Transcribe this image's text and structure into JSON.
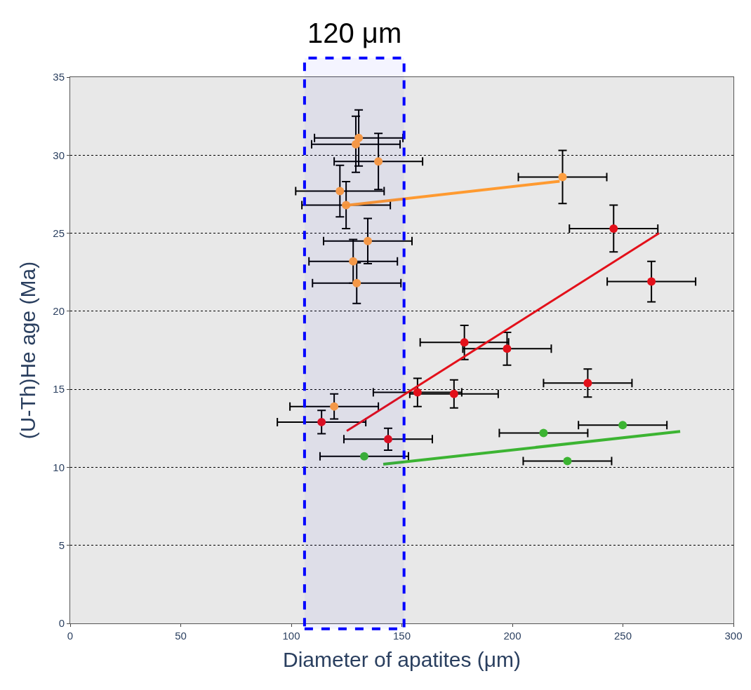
{
  "chart_data": {
    "type": "scatter",
    "xlabel": "Diameter of apatites (μm)",
    "ylabel": "(U-Th)He age (Ma)",
    "xlim": [
      0,
      300
    ],
    "xticks": [
      0,
      50,
      100,
      150,
      200,
      250,
      300
    ],
    "ylim": [
      0,
      35
    ],
    "yticks": [
      0,
      5,
      10,
      15,
      20,
      25,
      30,
      35
    ],
    "grid": "y",
    "marker": "circle",
    "series": [
      {
        "color": "#ff9f40",
        "x": [
          130.5,
          129.2,
          139.4,
          122,
          124.8,
          134.6,
          128,
          129.6,
          222.7,
          119.4
        ],
        "values": [
          31.1,
          30.7,
          29.6,
          27.7,
          26.8,
          24.5,
          23.2,
          21.8,
          28.6,
          13.9
        ],
        "errors": [
          1.8,
          1.8,
          1.8,
          1.65,
          1.5,
          1.45,
          1.4,
          1.3,
          1.7,
          0.8
        ],
        "xerrors": [
          20,
          20,
          20,
          20,
          20,
          20,
          20,
          20,
          20,
          20
        ]
      },
      {
        "color": "#e3101a",
        "x": [
          245.8,
          262.9,
          178.3,
          197.6,
          234.1,
          157.1,
          173.6,
          113.7,
          143.8
        ],
        "values": [
          25.3,
          21.9,
          18.0,
          17.6,
          15.4,
          14.8,
          14.7,
          12.9,
          11.8
        ],
        "errors": [
          1.5,
          1.3,
          1.1,
          1.05,
          0.9,
          0.9,
          0.9,
          0.75,
          0.7
        ],
        "xerrors": [
          20,
          20,
          20,
          20,
          20,
          20,
          20,
          20,
          20
        ]
      },
      {
        "color": "#3cb432",
        "x": [
          133,
          214.1,
          249.9,
          224.9
        ],
        "values": [
          10.7,
          12.2,
          12.7,
          10.4
        ],
        "xerrors": [
          20,
          20,
          20,
          20
        ]
      },
      {
        "type": "line",
        "color": "#ff9a30",
        "x": [
          123.2,
          221.4
        ],
        "values": [
          26.76,
          28.33
        ],
        "marker": "none"
      },
      {
        "type": "line",
        "color": "#e3101a",
        "x": [
          125.1,
          266.4
        ],
        "values": [
          12.33,
          25.0
        ],
        "marker": "none"
      },
      {
        "type": "line",
        "color": "#3cb432",
        "x": [
          141.6,
          275.9
        ],
        "values": [
          10.2,
          12.3
        ],
        "marker": "none"
      }
    ],
    "bands": [
      {
        "axis": "x",
        "from": 106,
        "to": 151,
        "label": "120 μm",
        "color": "#0000ff"
      }
    ]
  }
}
